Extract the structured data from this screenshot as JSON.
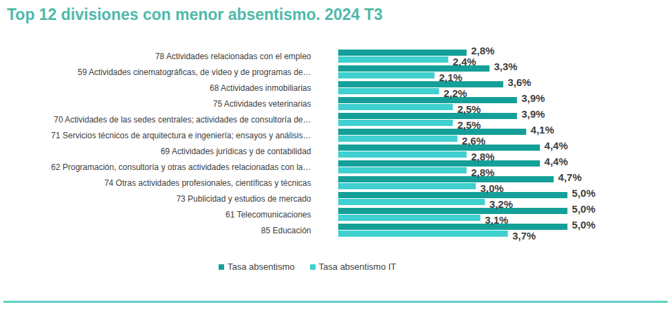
{
  "chart_data": {
    "type": "bar",
    "title": "Top 12 divisiones con menor absentismo. 2024 T3",
    "orientation": "horizontal",
    "categories": [
      "78 Actividades relacionadas con el empleo",
      "59 Actividades cinematográficas, de vídeo y de programas de…",
      "68 Actividades inmobiliarias",
      "75 Actividades veterinarias",
      "70 Actividades de las sedes centrales; actividades de consultoría de…",
      "71 Servicios técnicos de arquitectura e ingeniería; ensayos y análisis…",
      "69 Actividades jurídicas y de contabilidad",
      "62 Programación, consultoría y otras actividades relacionadas con la…",
      "74 Otras actividades profesionales, científicas y técnicas",
      "73 Publicidad y estudios de mercado",
      "61 Telecomunicaciones",
      "85 Educación"
    ],
    "series": [
      {
        "name": "Tasa absentismo",
        "color": "#14a098",
        "values": [
          2.8,
          3.3,
          3.6,
          3.9,
          3.9,
          4.1,
          4.4,
          4.4,
          4.7,
          5.0,
          5.0,
          5.0
        ],
        "value_labels": [
          "2,8%",
          "3,3%",
          "3,6%",
          "3,9%",
          "3,9%",
          "4,1%",
          "4,4%",
          "4,4%",
          "4,7%",
          "5,0%",
          "5,0%",
          "5,0%"
        ]
      },
      {
        "name": "Tasa absentismo IT",
        "color": "#3fd0cf",
        "values": [
          2.4,
          2.1,
          2.2,
          2.5,
          2.5,
          2.6,
          2.8,
          2.8,
          3.0,
          3.2,
          3.1,
          3.7
        ],
        "value_labels": [
          "2,4%",
          "2,1%",
          "2,2%",
          "2,5%",
          "2,5%",
          "2,6%",
          "2,8%",
          "2,8%",
          "3,0%",
          "3,2%",
          "3,1%",
          "3,7%"
        ]
      }
    ],
    "xlim": [
      0,
      6
    ],
    "xticks": [],
    "grid": false,
    "legend": "bottom",
    "data_labels": true,
    "tick_labels": "y"
  }
}
